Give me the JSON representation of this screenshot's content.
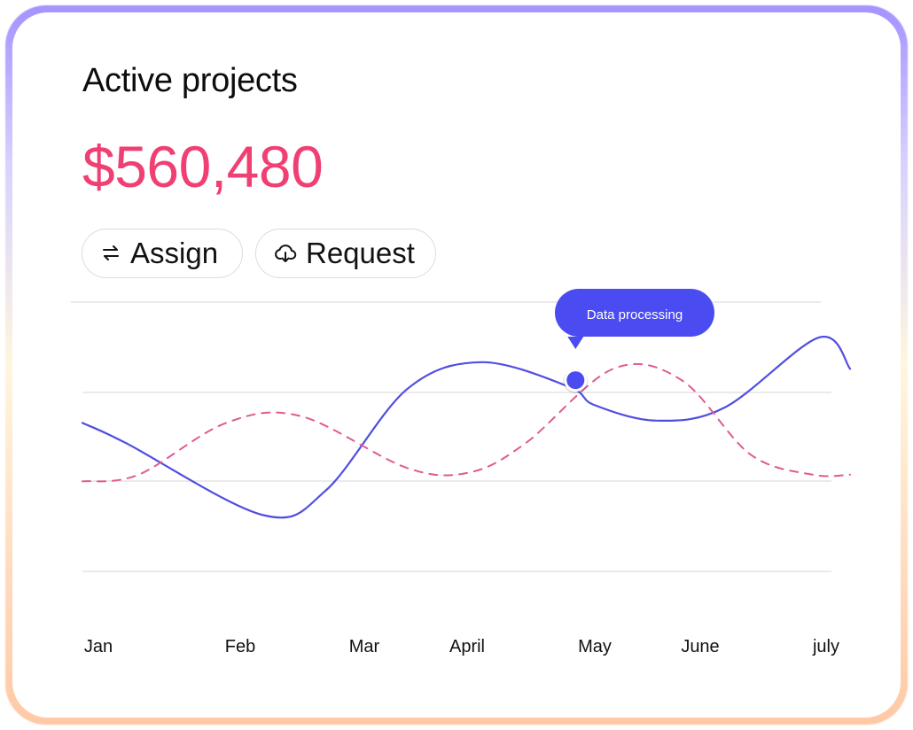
{
  "card": {
    "title": "Active projects",
    "amount": "$560,480"
  },
  "buttons": {
    "assign_label": "Assign",
    "request_label": "Request",
    "assign_icon": "swap-arrows-icon",
    "request_icon": "cloud-download-icon"
  },
  "colors": {
    "amount": "#f03f72",
    "series_solid": "#4f4ee0",
    "series_dashed": "#e05a93",
    "tooltip": "#4b4bf2",
    "frame_top": "#a593ff",
    "frame_bottom": "#ffc9a5"
  },
  "chart_data": {
    "type": "line",
    "categories": [
      "Jan",
      "Feb",
      "Mar",
      "April",
      "May",
      "June",
      "july"
    ],
    "gridlines": true,
    "y_ticks_labeled": false,
    "ylim": [
      0,
      100
    ],
    "series": [
      {
        "style": "solid",
        "x": [
          0,
          0.35,
          1.45,
          1.95,
          2.6,
          3.2,
          3.9,
          4.1,
          4.6,
          5.15,
          5.9,
          6.15
        ],
        "values": [
          53,
          44,
          12,
          23,
          68,
          80,
          69,
          61,
          54,
          60,
          91,
          77
        ]
      },
      {
        "style": "dashed",
        "x": [
          0,
          0.45,
          1.15,
          1.75,
          2.6,
          3.1,
          3.55,
          4.25,
          4.8,
          5.35,
          5.85,
          6.15
        ],
        "values": [
          27,
          30,
          53,
          56,
          33,
          31,
          44,
          77,
          72,
          39,
          30,
          30
        ]
      }
    ],
    "annotation": {
      "label": "Data processing",
      "series_index": 1,
      "x": 3.95,
      "value": 72
    }
  }
}
